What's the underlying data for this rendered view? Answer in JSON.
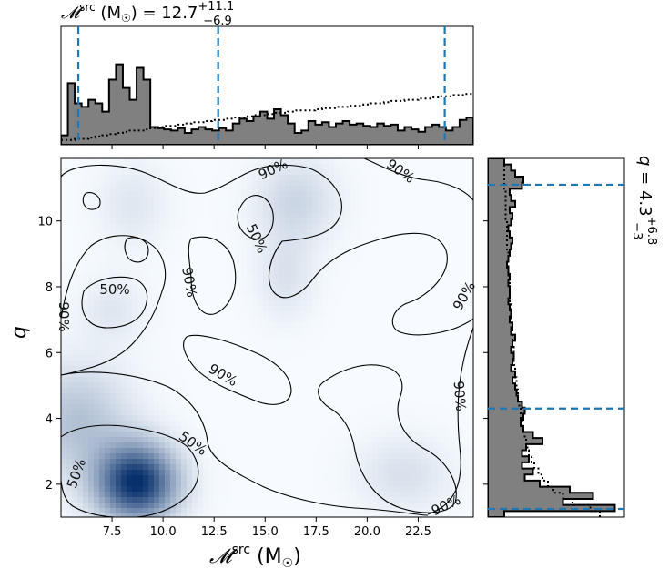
{
  "chart_data": {
    "type": "corner_plot",
    "top_title": {
      "prefix": "𝓜",
      "sup": "src",
      "unit": " (M",
      "sun": "☉",
      "close": ")",
      "eq": " = 12.7",
      "plus": "+11.1",
      "minus": "−6.9"
    },
    "right_title": {
      "prefix": "q",
      "eq": " = 4.3",
      "plus": "+6.8",
      "minus": "−3"
    },
    "xlabel": {
      "prefix": "𝓜",
      "sup": "src",
      "unit": " (M",
      "sun": "☉",
      "close": ")"
    },
    "ylabel": "q",
    "xlim": [
      5.0,
      25.2
    ],
    "ylim": [
      1.0,
      11.9
    ],
    "x_ticks": [
      "7.5",
      "10.0",
      "12.5",
      "15.0",
      "17.5",
      "20.0",
      "22.5"
    ],
    "y_ticks": [
      "2",
      "4",
      "6",
      "8",
      "10"
    ],
    "x_tick_values": [
      7.5,
      10.0,
      12.5,
      15.0,
      17.5,
      20.0,
      22.5
    ],
    "y_tick_values": [
      2,
      4,
      6,
      8,
      10
    ],
    "x_quantiles": [
      5.85,
      12.7,
      23.8
    ],
    "y_quantiles": [
      1.25,
      4.3,
      11.1
    ],
    "contour_labels": [
      "90%",
      "90%",
      "90%",
      "90%",
      "90%",
      "90%",
      "90%",
      "90%",
      "50%",
      "50%",
      "50%",
      "50%",
      "50%"
    ],
    "density_peaks": [
      {
        "x": 8.7,
        "y": 2.05,
        "sx": 1.35,
        "sy": 0.8,
        "w": 1.0
      },
      {
        "x": 5.8,
        "y": 3.9,
        "sx": 1.8,
        "sy": 1.2,
        "w": 0.28
      },
      {
        "x": 16.5,
        "y": 10.6,
        "sx": 1.4,
        "sy": 0.9,
        "w": 0.18
      },
      {
        "x": 16.0,
        "y": 8.3,
        "sx": 1.0,
        "sy": 0.9,
        "w": 0.12
      },
      {
        "x": 21.8,
        "y": 2.3,
        "sx": 1.6,
        "sy": 0.8,
        "w": 0.13
      },
      {
        "x": 8.5,
        "y": 10.5,
        "sx": 1.2,
        "sy": 0.9,
        "w": 0.1
      },
      {
        "x": 7.5,
        "y": 7.3,
        "sx": 1.1,
        "sy": 0.7,
        "w": 0.1
      }
    ],
    "x_hist_bins": [
      5.0,
      25.2
    ],
    "x_hist_posterior": [
      0.08,
      0.52,
      0.35,
      0.32,
      0.38,
      0.35,
      0.28,
      0.55,
      0.68,
      0.48,
      0.38,
      0.65,
      0.55,
      0.15,
      0.14,
      0.13,
      0.12,
      0.14,
      0.1,
      0.13,
      0.15,
      0.13,
      0.12,
      0.14,
      0.12,
      0.18,
      0.22,
      0.2,
      0.24,
      0.28,
      0.22,
      0.3,
      0.25,
      0.18,
      0.1,
      0.12,
      0.2,
      0.17,
      0.19,
      0.15,
      0.18,
      0.2,
      0.17,
      0.18,
      0.16,
      0.15,
      0.18,
      0.16,
      0.17,
      0.12,
      0.15,
      0.13,
      0.11,
      0.15,
      0.17,
      0.15,
      0.12,
      0.15,
      0.21,
      0.23
    ],
    "x_hist_prior": [
      0.04,
      0.04,
      0.05,
      0.05,
      0.06,
      0.07,
      0.08,
      0.09,
      0.1,
      0.11,
      0.12,
      0.12,
      0.13,
      0.14,
      0.15,
      0.16,
      0.16,
      0.17,
      0.18,
      0.19,
      0.19,
      0.2,
      0.21,
      0.21,
      0.22,
      0.23,
      0.23,
      0.24,
      0.25,
      0.25,
      0.26,
      0.27,
      0.27,
      0.28,
      0.29,
      0.29,
      0.29,
      0.3,
      0.31,
      0.31,
      0.32,
      0.32,
      0.33,
      0.33,
      0.34,
      0.35,
      0.35,
      0.36,
      0.37,
      0.37,
      0.38,
      0.38,
      0.39,
      0.39,
      0.4,
      0.41,
      0.41,
      0.42,
      0.42,
      0.43
    ],
    "y_hist_bins": [
      1.0,
      11.9
    ],
    "y_hist_posterior": [
      0.12,
      0.93,
      0.55,
      0.77,
      0.6,
      0.38,
      0.27,
      0.33,
      0.25,
      0.3,
      0.25,
      0.28,
      0.4,
      0.33,
      0.26,
      0.24,
      0.26,
      0.27,
      0.25,
      0.22,
      0.21,
      0.2,
      0.18,
      0.2,
      0.17,
      0.18,
      0.19,
      0.17,
      0.18,
      0.2,
      0.17,
      0.18,
      0.16,
      0.17,
      0.16,
      0.15,
      0.16,
      0.16,
      0.15,
      0.16,
      0.15,
      0.14,
      0.15,
      0.16,
      0.17,
      0.18,
      0.16,
      0.15,
      0.17,
      0.18,
      0.16,
      0.2,
      0.17,
      0.16,
      0.25,
      0.26,
      0.2,
      0.17,
      0.12
    ],
    "y_hist_prior": [
      0.82,
      0.75,
      0.62,
      0.55,
      0.48,
      0.44,
      0.4,
      0.37,
      0.34,
      0.32,
      0.3,
      0.29,
      0.28,
      0.27,
      0.26,
      0.25,
      0.24,
      0.24,
      0.23,
      0.22,
      0.22,
      0.21,
      0.21,
      0.2,
      0.2,
      0.19,
      0.19,
      0.19,
      0.18,
      0.18,
      0.18,
      0.17,
      0.17,
      0.17,
      0.17,
      0.16,
      0.16,
      0.16,
      0.16,
      0.15,
      0.15,
      0.15,
      0.15,
      0.15,
      0.14,
      0.14,
      0.14,
      0.14,
      0.14,
      0.13,
      0.13,
      0.13,
      0.13,
      0.13,
      0.12,
      0.12,
      0.12,
      0.12,
      0.12
    ]
  }
}
